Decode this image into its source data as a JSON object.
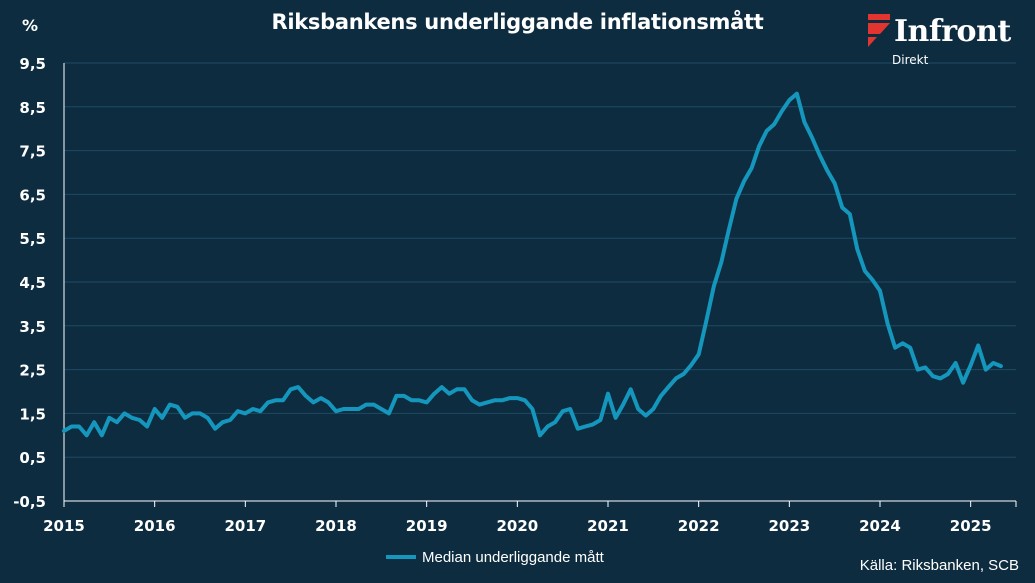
{
  "title": "Riksbankens underliggande inflationsmått",
  "unit_label": "%",
  "logo": {
    "name": "Infront",
    "sub": "Direkt",
    "icon": "infront-flag-logo"
  },
  "source": "Källa: Riksbanken, SCB",
  "colors": {
    "background": "#0d2c40",
    "line": "#1597bd",
    "text": "#ffffff",
    "logo_red": "#e2352f"
  },
  "chart_data": {
    "type": "line",
    "title": "Riksbankens underliggande inflationsmått",
    "ylabel": "%",
    "xlabel": "",
    "x_range": [
      2015.0,
      2025.5
    ],
    "ylim": [
      -0.5,
      9.5
    ],
    "yticks": [
      -0.5,
      0.5,
      1.5,
      2.5,
      3.5,
      4.5,
      5.5,
      6.5,
      7.5,
      8.5,
      9.5
    ],
    "ytick_labels": [
      "-0,5",
      "0,5",
      "1,5",
      "2,5",
      "3,5",
      "4,5",
      "5,5",
      "6,5",
      "7,5",
      "8,5",
      "9,5"
    ],
    "xticks": [
      2015,
      2016,
      2017,
      2018,
      2019,
      2020,
      2021,
      2022,
      2023,
      2024,
      2025
    ],
    "xtick_labels": [
      "2015",
      "2016",
      "2017",
      "2018",
      "2019",
      "2020",
      "2021",
      "2022",
      "2023",
      "2024",
      "2025"
    ],
    "grid": "horizontal",
    "legend_position": "bottom",
    "series": [
      {
        "name": "Median underliggande mått",
        "color": "#1597bd",
        "start": "2015-01",
        "frequency": "monthly",
        "values": [
          1.1,
          1.2,
          1.2,
          1.0,
          1.3,
          1.0,
          1.4,
          1.3,
          1.5,
          1.4,
          1.35,
          1.2,
          1.6,
          1.4,
          1.7,
          1.65,
          1.4,
          1.5,
          1.5,
          1.4,
          1.15,
          1.3,
          1.35,
          1.55,
          1.5,
          1.6,
          1.55,
          1.75,
          1.8,
          1.8,
          2.05,
          2.1,
          1.9,
          1.75,
          1.85,
          1.75,
          1.55,
          1.6,
          1.6,
          1.6,
          1.7,
          1.7,
          1.6,
          1.5,
          1.9,
          1.9,
          1.8,
          1.8,
          1.75,
          1.95,
          2.1,
          1.95,
          2.05,
          2.05,
          1.8,
          1.7,
          1.75,
          1.8,
          1.8,
          1.85,
          1.85,
          1.8,
          1.6,
          1.0,
          1.2,
          1.3,
          1.55,
          1.6,
          1.15,
          1.2,
          1.25,
          1.35,
          1.95,
          1.4,
          1.7,
          2.05,
          1.6,
          1.45,
          1.6,
          1.9,
          2.1,
          2.3,
          2.4,
          2.6,
          2.85,
          3.6,
          4.4,
          4.95,
          5.7,
          6.4,
          6.8,
          7.1,
          7.6,
          7.95,
          8.1,
          8.4,
          8.65,
          8.8,
          8.15,
          7.8,
          7.4,
          7.05,
          6.75,
          6.2,
          6.05,
          5.25,
          4.75,
          4.55,
          4.3,
          3.55,
          3.0,
          3.1,
          3.0,
          2.5,
          2.55,
          2.35,
          2.3,
          2.4,
          2.65,
          2.2,
          2.6,
          3.05,
          2.5,
          2.65,
          2.58
        ]
      }
    ]
  }
}
